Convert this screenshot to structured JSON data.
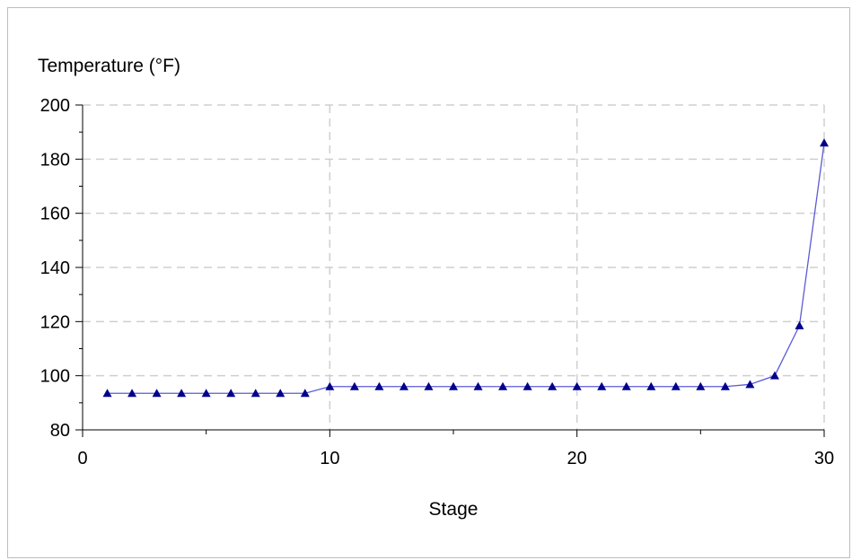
{
  "chart_data": {
    "type": "line",
    "title": "",
    "xlabel": "Stage",
    "ylabel": "Temperature (°F)",
    "xlim": [
      0,
      30
    ],
    "ylim": [
      80,
      200
    ],
    "xticks": [
      0,
      10,
      20,
      30
    ],
    "yticks": [
      80,
      100,
      120,
      140,
      160,
      180,
      200
    ],
    "x_minor_step": 5,
    "y_minor_step": 10,
    "grid": true,
    "legend": "none",
    "series": [
      {
        "color": "#00008b",
        "line_color": "#5b5bd6",
        "marker": "triangle",
        "x": [
          1,
          2,
          3,
          4,
          5,
          6,
          7,
          8,
          9,
          10,
          11,
          12,
          13,
          14,
          15,
          16,
          17,
          18,
          19,
          20,
          21,
          22,
          23,
          24,
          25,
          26,
          27,
          28,
          29,
          30
        ],
        "y": [
          93.5,
          93.5,
          93.5,
          93.5,
          93.5,
          93.5,
          93.5,
          93.5,
          93.5,
          96,
          96,
          96,
          96,
          96,
          96,
          96,
          96,
          96,
          96,
          96,
          96,
          96,
          96,
          96,
          96,
          96,
          96.8,
          100,
          118.5,
          186
        ]
      }
    ]
  }
}
